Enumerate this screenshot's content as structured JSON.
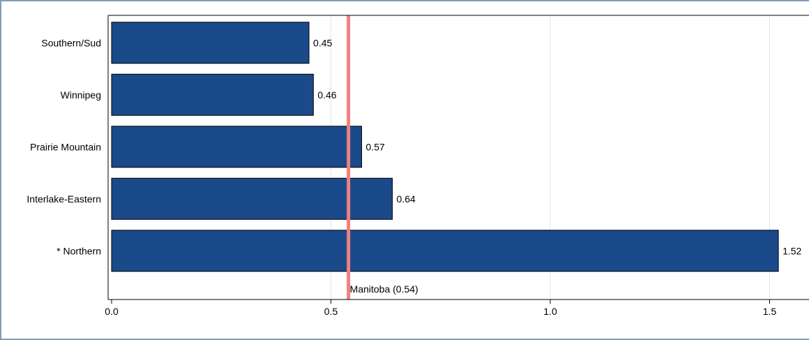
{
  "chart_data": {
    "type": "bar",
    "orientation": "horizontal",
    "categories": [
      "Southern/Sud",
      "Winnipeg",
      "Prairie Mountain",
      "Interlake-Eastern",
      "* Northern"
    ],
    "values": [
      0.45,
      0.46,
      0.57,
      0.64,
      1.52
    ],
    "value_labels": [
      "0.45",
      "0.46",
      "0.57",
      "0.64",
      "1.52"
    ],
    "xlim": [
      0,
      1.6
    ],
    "x_ticks": [
      0.0,
      0.5,
      1.0,
      1.5
    ],
    "x_tick_labels": [
      "0.0",
      "0.5",
      "1.0",
      "1.5"
    ],
    "grid": "vertical",
    "bar_color": "#1a4a8a",
    "reference_line": {
      "value": 0.54,
      "label": "Manitoba (0.54)",
      "color": "#f08080"
    }
  }
}
